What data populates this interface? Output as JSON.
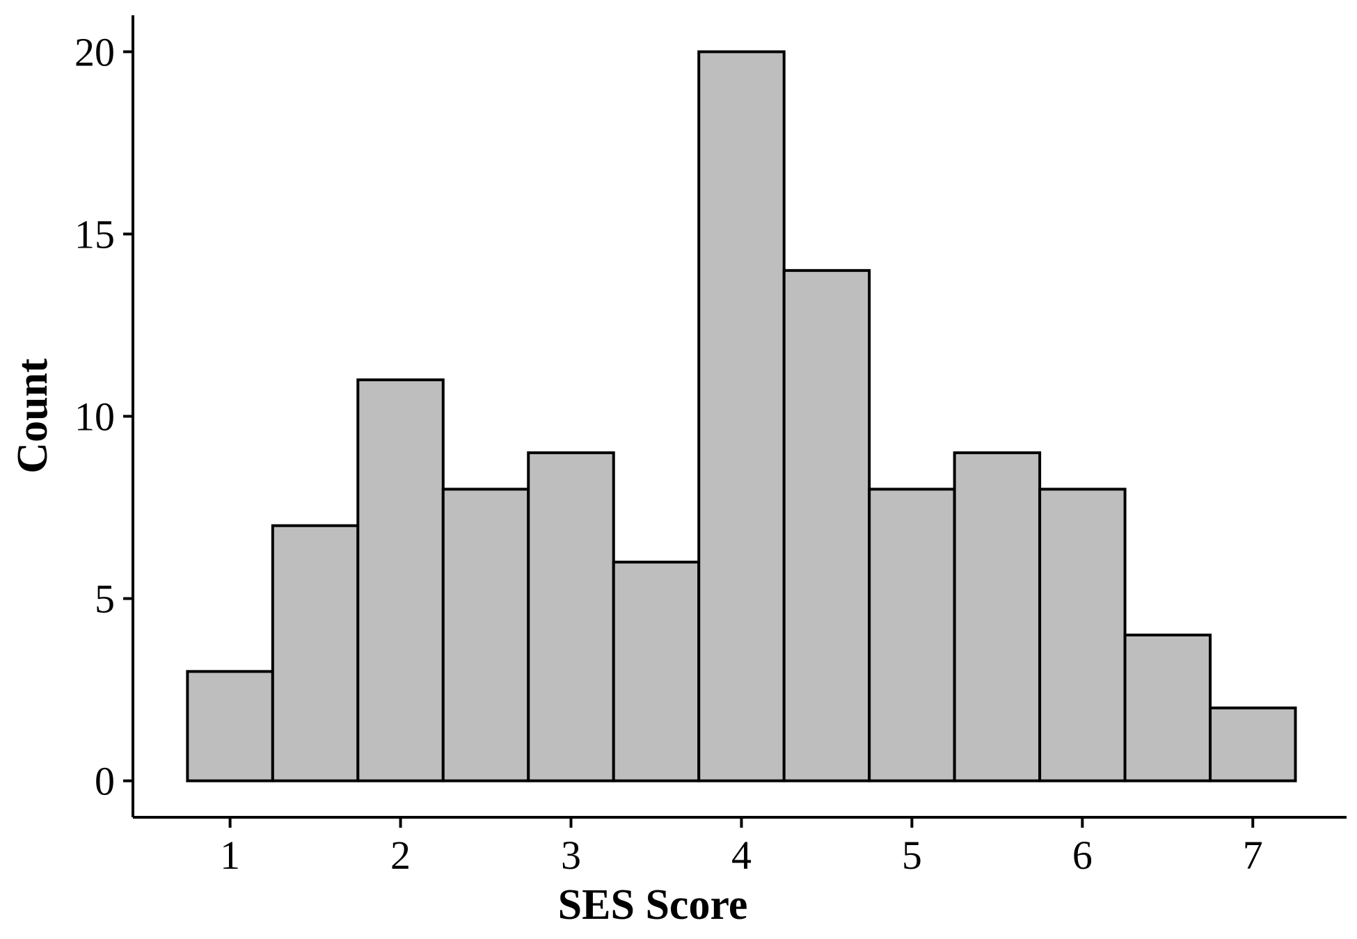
{
  "chart_data": {
    "type": "bar",
    "title": "",
    "xlabel": "SES Score",
    "ylabel": "Count",
    "bin_width": 0.5,
    "bins": [
      {
        "x0": 0.75,
        "x1": 1.25,
        "count": 3
      },
      {
        "x0": 1.25,
        "x1": 1.75,
        "count": 7
      },
      {
        "x0": 1.75,
        "x1": 2.25,
        "count": 11
      },
      {
        "x0": 2.25,
        "x1": 2.75,
        "count": 8
      },
      {
        "x0": 2.75,
        "x1": 3.25,
        "count": 9
      },
      {
        "x0": 3.25,
        "x1": 3.75,
        "count": 6
      },
      {
        "x0": 3.75,
        "x1": 4.25,
        "count": 20
      },
      {
        "x0": 4.25,
        "x1": 4.75,
        "count": 14
      },
      {
        "x0": 4.75,
        "x1": 5.25,
        "count": 8
      },
      {
        "x0": 5.25,
        "x1": 5.75,
        "count": 9
      },
      {
        "x0": 5.75,
        "x1": 6.25,
        "count": 8
      },
      {
        "x0": 6.25,
        "x1": 6.75,
        "count": 4
      },
      {
        "x0": 6.75,
        "x1": 7.25,
        "count": 2
      }
    ],
    "xticks": [
      1,
      2,
      3,
      4,
      5,
      6,
      7
    ],
    "yticks": [
      0,
      5,
      10,
      15,
      20
    ],
    "xlim": [
      0.43,
      7.55
    ],
    "ylim": [
      -1,
      21
    ],
    "grid": false,
    "legend": "none",
    "colors": {
      "bar_fill": "#bebebe",
      "bar_stroke": "#000000",
      "axis": "#000000"
    }
  }
}
